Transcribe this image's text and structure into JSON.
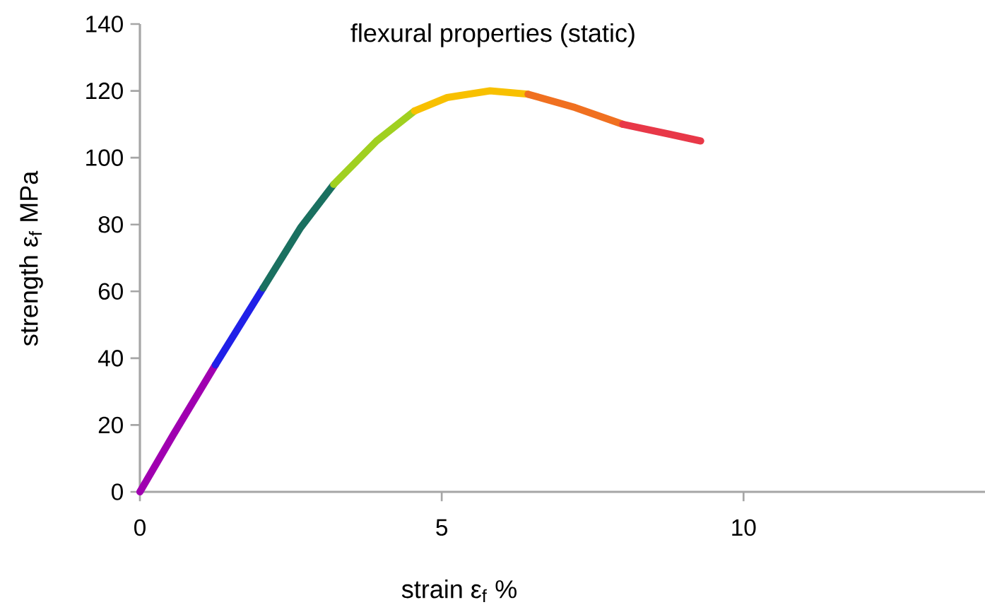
{
  "chart_data": {
    "type": "line",
    "title": "flexural properties (static)",
    "xlabel": "strain  ε$_{f}$  %",
    "ylabel": "strength  ε$_{f}$  MPa",
    "series": [
      {
        "color": "#a000b0",
        "x": [
          0,
          0.55,
          1.25
        ],
        "values": [
          0,
          17,
          38
        ]
      },
      {
        "color": "#2020e8",
        "x": [
          1.25,
          2.04
        ],
        "values": [
          38,
          61
        ]
      },
      {
        "color": "#1a7060",
        "x": [
          2.04,
          2.66,
          3.21
        ],
        "values": [
          61,
          79,
          92
        ]
      },
      {
        "color": "#a0d020",
        "x": [
          3.21,
          3.92,
          4.55
        ],
        "values": [
          92,
          105,
          114
        ]
      },
      {
        "color": "#f8c000",
        "x": [
          4.55,
          5.09,
          5.8,
          6.43
        ],
        "values": [
          114,
          118,
          120,
          119
        ]
      },
      {
        "color": "#f07020",
        "x": [
          6.43,
          7.21,
          8.0
        ],
        "values": [
          119,
          115,
          110
        ]
      },
      {
        "color": "#e83848",
        "x": [
          8.0,
          8.78,
          9.29
        ],
        "values": [
          110,
          107,
          105
        ]
      }
    ],
    "xlim": [
      0,
      14
    ],
    "ylim": [
      0,
      140
    ],
    "xticks": [
      0,
      5,
      10
    ],
    "yticks": [
      0,
      20,
      40,
      60,
      80,
      100,
      120,
      140
    ],
    "marker": "none",
    "line_style": "solid"
  }
}
